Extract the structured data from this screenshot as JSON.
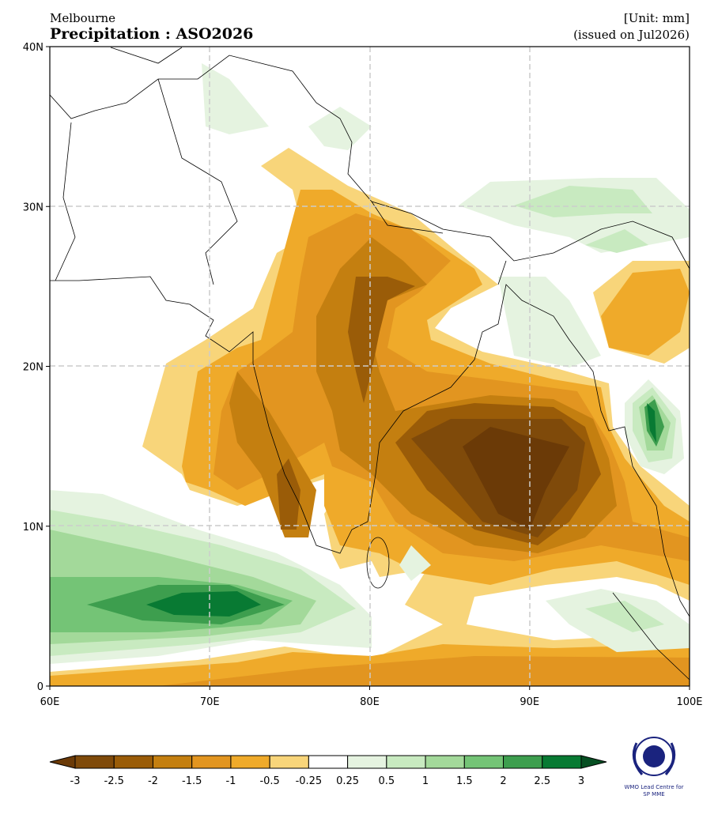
{
  "header": {
    "center": "Melbourne",
    "title": "Precipitation : ASO2026",
    "unit": "[Unit: mm]",
    "issued": "(issued on Jul2026)"
  },
  "map": {
    "lon_ticks": [
      "60E",
      "70E",
      "80E",
      "90E",
      "100E"
    ],
    "lat_ticks": [
      "0",
      "10N",
      "20N",
      "30N",
      "40N"
    ]
  },
  "colorbar": {
    "ticks": [
      "-3",
      "-2.5",
      "-2",
      "-1.5",
      "-1",
      "-0.5",
      "-0.25",
      "0.25",
      "0.5",
      "1",
      "1.5",
      "2",
      "2.5",
      "3"
    ],
    "colors": [
      "#7f4a0a",
      "#9a5c08",
      "#c47f10",
      "#e29520",
      "#efaa2a",
      "#f8d57a",
      "#ffffff",
      "#e5f3e0",
      "#c8eac0",
      "#a3d99a",
      "#74c476",
      "#3d9e4e",
      "#087a33"
    ],
    "low_color": "#6b3a07",
    "high_color": "#064f22"
  },
  "logo": {
    "line1": "WMO Lead Centre for",
    "line2": "SP MME"
  }
}
